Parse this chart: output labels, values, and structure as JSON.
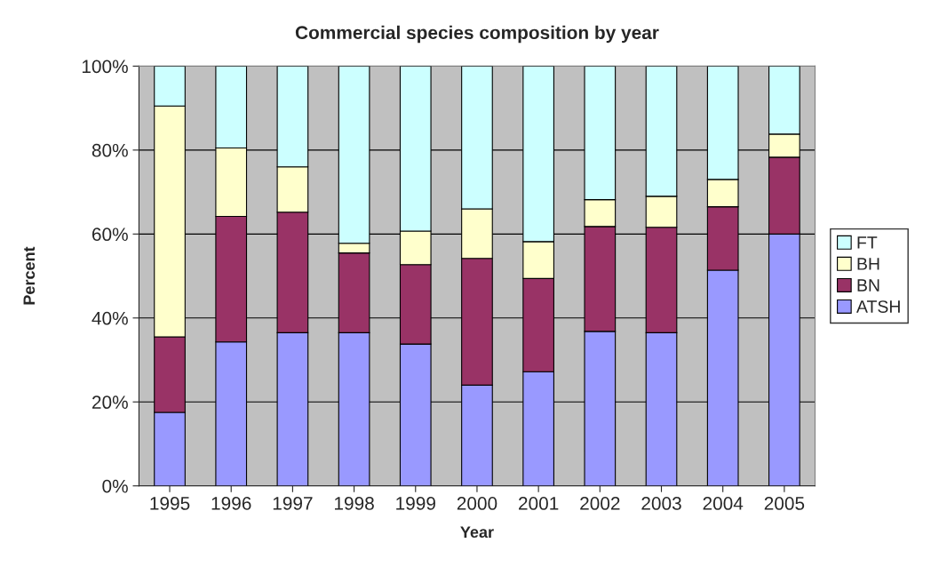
{
  "chart_data": {
    "type": "bar",
    "stacked": true,
    "title": "Commercial species composition by year",
    "xlabel": "Year",
    "ylabel": "Percent",
    "categories": [
      "1995",
      "1996",
      "1997",
      "1998",
      "1999",
      "2000",
      "2001",
      "2002",
      "2003",
      "2004",
      "2005"
    ],
    "series": [
      {
        "name": "ATSH",
        "color": "#9999ff",
        "values": [
          17.5,
          34.3,
          36.5,
          36.5,
          33.8,
          24,
          27.2,
          36.8,
          36.5,
          51.4,
          60
        ]
      },
      {
        "name": "BN",
        "color": "#993366",
        "values": [
          18,
          29.9,
          28.7,
          19,
          18.9,
          30.2,
          22.2,
          25,
          25.1,
          15.1,
          18.3
        ]
      },
      {
        "name": "BH",
        "color": "#ffffcc",
        "values": [
          55,
          16.3,
          10.8,
          2.3,
          8,
          11.8,
          8.8,
          6.4,
          7.4,
          6.5,
          5.5
        ]
      },
      {
        "name": "FT",
        "color": "#ccffff",
        "values": [
          9.5,
          19.5,
          24,
          42.2,
          39.3,
          34,
          41.8,
          31.8,
          31,
          27,
          16.2
        ]
      }
    ],
    "ylim": [
      0,
      100
    ],
    "yticks": [
      {
        "value": 0,
        "label": "0%"
      },
      {
        "value": 20,
        "label": "20%"
      },
      {
        "value": 40,
        "label": "40%"
      },
      {
        "value": 60,
        "label": "60%"
      },
      {
        "value": 80,
        "label": "80%"
      },
      {
        "value": 100,
        "label": "100%"
      }
    ],
    "grid": "y",
    "legend": "right"
  }
}
